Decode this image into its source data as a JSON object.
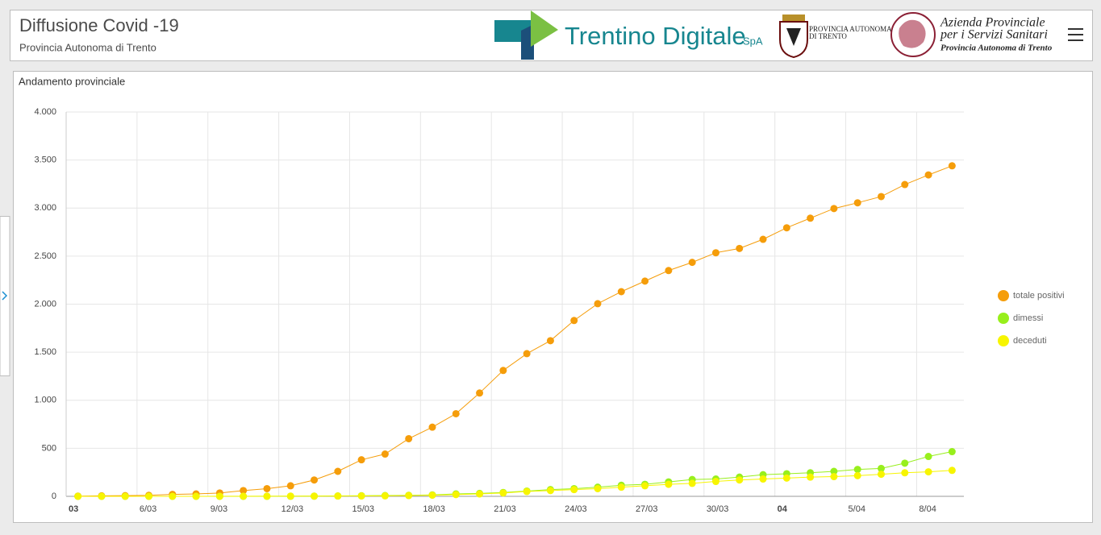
{
  "header": {
    "title": "Diffusione Covid -19",
    "subtitle": "Provincia Autonoma di Trento",
    "logos": [
      "Trentino Digitale",
      "SpA",
      "PROVINCIA AUTONOMA",
      "DI TRENTO",
      "Azienda Provinciale",
      "per i Servizi Sanitari",
      "Provincia Autonoma di Trento"
    ]
  },
  "chart_data": {
    "type": "line",
    "title": "Andamento provinciale",
    "categories": [
      "3/03",
      "4/03",
      "5/03",
      "6/03",
      "7/03",
      "8/03",
      "9/03",
      "10/03",
      "11/03",
      "12/03",
      "13/03",
      "14/03",
      "15/03",
      "16/03",
      "17/03",
      "18/03",
      "19/03",
      "20/03",
      "21/03",
      "22/03",
      "23/03",
      "24/03",
      "25/03",
      "26/03",
      "27/03",
      "28/03",
      "29/03",
      "30/03",
      "31/03",
      "1/04",
      "2/04",
      "3/04",
      "4/04",
      "5/04",
      "6/04",
      "7/04",
      "8/04",
      "9/04"
    ],
    "series": [
      {
        "name": "totale positivi",
        "color": "#f59d0a",
        "values": [
          2,
          5,
          7,
          10,
          20,
          25,
          35,
          60,
          80,
          110,
          170,
          260,
          380,
          440,
          600,
          720,
          860,
          1075,
          1310,
          1485,
          1620,
          1830,
          2005,
          2130,
          2240,
          2350,
          2435,
          2535,
          2580,
          2675,
          2795,
          2895,
          2995,
          3055,
          3120,
          3245,
          3345,
          3440
        ]
      },
      {
        "name": "dimessi",
        "color": "#98ef1c",
        "values": [
          0,
          0,
          0,
          0,
          0,
          0,
          0,
          0,
          1,
          1,
          2,
          4,
          6,
          8,
          10,
          15,
          25,
          30,
          40,
          55,
          70,
          80,
          95,
          115,
          125,
          150,
          175,
          180,
          200,
          225,
          235,
          245,
          260,
          280,
          290,
          345,
          415,
          465
        ]
      },
      {
        "name": "deceduti",
        "color": "#f7f500",
        "values": [
          0,
          0,
          0,
          0,
          0,
          0,
          1,
          1,
          1,
          2,
          2,
          3,
          4,
          5,
          8,
          12,
          18,
          25,
          35,
          50,
          60,
          70,
          80,
          95,
          110,
          125,
          135,
          155,
          170,
          180,
          190,
          200,
          205,
          215,
          230,
          245,
          255,
          270
        ]
      }
    ],
    "xticks": [
      {
        "value": "3/03",
        "label": "03"
      },
      "6/03",
      "9/03",
      "12/03",
      "15/03",
      "18/03",
      "21/03",
      "24/03",
      "27/03",
      "30/03",
      {
        "value": "2/04",
        "label": "04"
      },
      "5/04",
      "8/04"
    ],
    "ylim": [
      0,
      4000
    ],
    "yticks": [
      0,
      500,
      {
        "value": 1000,
        "label": "1.000"
      },
      {
        "value": 1500,
        "label": "1.500"
      },
      {
        "value": 2000,
        "label": "2.000"
      },
      {
        "value": 2500,
        "label": "2.500"
      },
      {
        "value": 3000,
        "label": "3.000"
      },
      {
        "value": 3500,
        "label": "3.500"
      },
      {
        "value": 4000,
        "label": "4.000"
      }
    ],
    "grid": true,
    "legend": "right"
  }
}
